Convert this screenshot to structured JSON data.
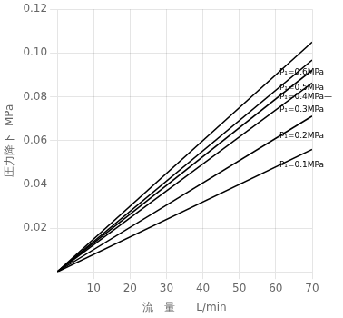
{
  "chart_data": {
    "type": "line",
    "xlabel": "流　量      L/min",
    "ylabel": "圧力降下  MPa",
    "x": [
      0,
      70
    ],
    "series": [
      {
        "color": "#000000",
        "values": [
          0,
          0.105
        ]
      },
      {
        "color": "#000000",
        "values": [
          0,
          0.09681
        ]
      },
      {
        "color": "#000000",
        "values": [
          0,
          0.09219
        ]
      },
      {
        "color": "#000000",
        "values": [
          0,
          0.08631
        ]
      },
      {
        "color": "#000000",
        "values": [
          0,
          0.07119
        ]
      },
      {
        "color": "#000000",
        "values": [
          0,
          0.056
        ]
      }
    ],
    "annotations": [
      {
        "text": "P₁=0.6MPa",
        "x": 61,
        "y": 0.091
      },
      {
        "text": "P₁=0.5MPa",
        "x": 61,
        "y": 0.084
      },
      {
        "text": "P₁=0.4MPa—",
        "x": 61,
        "y": 0.08
      },
      {
        "text": "P₁=0.3MPa",
        "x": 61,
        "y": 0.074
      },
      {
        "text": "P₁=0.2MPa",
        "x": 61,
        "y": 0.062
      },
      {
        "text": "P₁=0.1MPa",
        "x": 61,
        "y": 0.049
      }
    ],
    "xlim": [
      0,
      70
    ],
    "ylim": [
      0,
      0.12
    ],
    "xticks": [
      10,
      20,
      30,
      40,
      50,
      60,
      70
    ],
    "yticks": [
      0.02,
      0.04,
      0.06,
      0.08,
      {
        "value": 0.1,
        "label": "0.10"
      },
      0.12
    ],
    "grid": true
  }
}
